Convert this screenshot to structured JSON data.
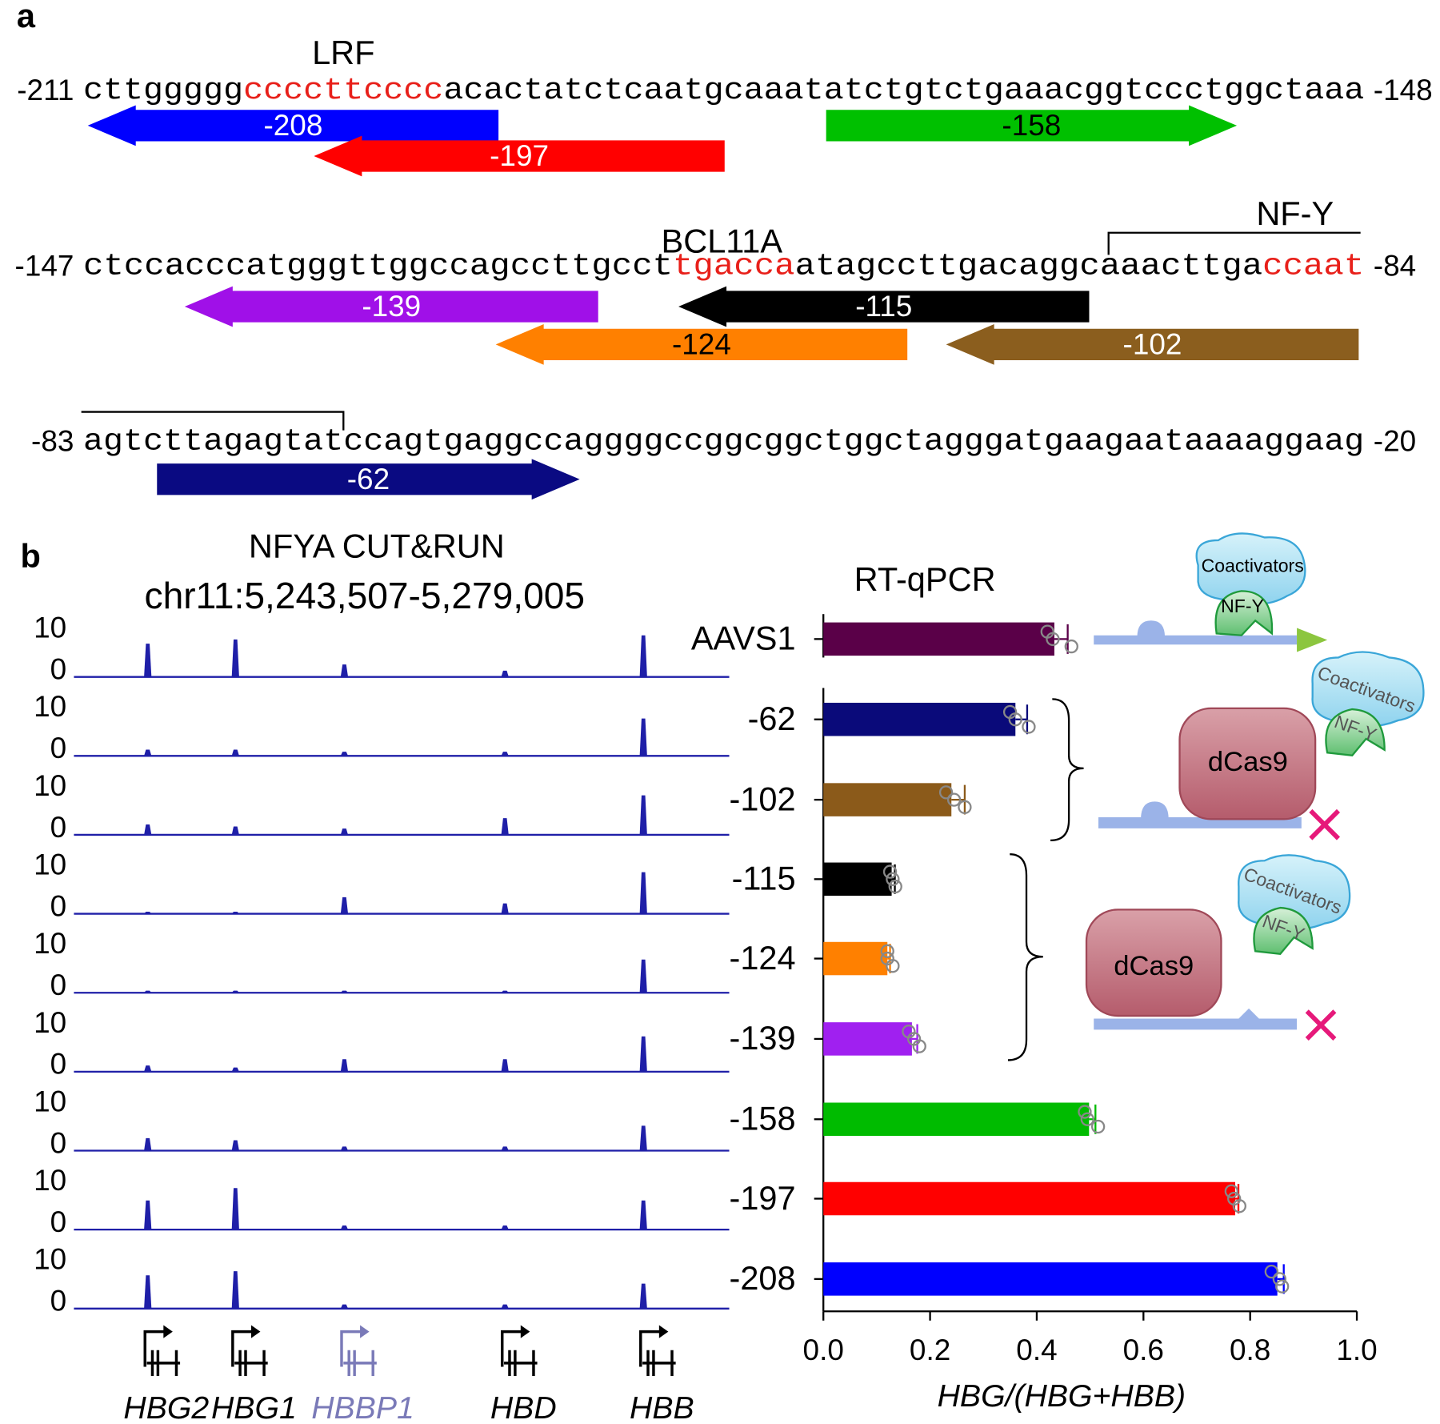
{
  "panel_labels": [
    "a",
    "b"
  ],
  "sequence": {
    "rows": [
      {
        "start": "-211",
        "end": "-148",
        "segments": [
          {
            "text": "cttggggg",
            "color": "#000000"
          },
          {
            "text": "ccccttcccc",
            "color": "#e8201a"
          },
          {
            "text": "acactatctcaatgcaaatatctgtctgaaacggtccctggctaaa",
            "color": "#000000"
          }
        ]
      },
      {
        "start": "-147",
        "end": "-84",
        "segments": [
          {
            "text": "ctccacccatgggttggccagccttgcct",
            "color": "#000000"
          },
          {
            "text": "tgacca",
            "color": "#e8201a"
          },
          {
            "text": "atagccttgacaggcaaacttga",
            "color": "#000000"
          },
          {
            "text": "ccaat",
            "color": "#e8201a"
          }
        ]
      },
      {
        "start": "-83",
        "end": "-20",
        "segments": [
          {
            "text": "agtcttagagtatccagtgaggccaggggccggcggctggctagggatgaagaataaaaggaag",
            "color": "#000000"
          }
        ]
      }
    ],
    "annotations": [
      "LRF",
      "BCL11A",
      "NF-Y"
    ],
    "arrows": [
      {
        "label": "-208",
        "color": "#0000ff",
        "text_color": "#ffffff",
        "direction": "left"
      },
      {
        "label": "-197",
        "color": "#ff0000",
        "text_color": "#ffffff",
        "direction": "left"
      },
      {
        "label": "-158",
        "color": "#00c000",
        "text_color": "#000000",
        "direction": "right"
      },
      {
        "label": "-139",
        "color": "#a010e8",
        "text_color": "#ffffff",
        "direction": "left"
      },
      {
        "label": "-115",
        "color": "#000000",
        "text_color": "#ffffff",
        "direction": "left"
      },
      {
        "label": "-124",
        "color": "#ff8000",
        "text_color": "#000000",
        "direction": "left"
      },
      {
        "label": "-102",
        "color": "#8b5e1e",
        "text_color": "#ffffff",
        "direction": "left"
      },
      {
        "label": "-62",
        "color": "#0a0a82",
        "text_color": "#ffffff",
        "direction": "right"
      }
    ]
  },
  "chart_data": [
    {
      "type": "coverage",
      "title": "NFYA CUT&RUN",
      "subtitle": "chr11:5,243,507-5,279,005",
      "ylim": [
        0,
        10
      ],
      "yticks": [
        0,
        10
      ],
      "color": "#1f1fa8",
      "genes": [
        "HBG2",
        "HBG1",
        "HBBP1",
        "HBD",
        "HBB"
      ],
      "gene_colors": [
        "#000000",
        "#000000",
        "#7a7ab8",
        "#000000",
        "#000000"
      ],
      "series": [
        {
          "values": [
            8,
            9,
            3,
            1.5,
            10
          ]
        },
        {
          "values": [
            1.5,
            1.5,
            1,
            1,
            9
          ]
        },
        {
          "values": [
            2.5,
            2,
            1.5,
            4,
            9.5
          ]
        },
        {
          "values": [
            0.5,
            0.5,
            4,
            2.5,
            10
          ]
        },
        {
          "values": [
            0.5,
            0.5,
            0.5,
            0.5,
            8
          ]
        },
        {
          "values": [
            1.5,
            1,
            3,
            3,
            8.5
          ]
        },
        {
          "values": [
            3,
            2.5,
            1,
            1,
            6
          ]
        },
        {
          "values": [
            7,
            10,
            1,
            1,
            7
          ]
        },
        {
          "values": [
            8,
            9,
            1,
            1,
            6
          ]
        }
      ]
    },
    {
      "type": "bar",
      "orientation": "horizontal",
      "title": "RT-qPCR",
      "xlabel": "HBG/(HBG+HBB)",
      "categories": [
        "AAVS1",
        "-62",
        "-102",
        "-115",
        "-124",
        "-139",
        "-158",
        "-197",
        "-208"
      ],
      "values": [
        0.433,
        0.36,
        0.24,
        0.128,
        0.12,
        0.166,
        0.498,
        0.772,
        0.851
      ],
      "errors": [
        0.025,
        0.022,
        0.025,
        0.006,
        0.005,
        0.01,
        0.012,
        0.006,
        0.012
      ],
      "points": [
        [
          0.42,
          0.43,
          0.465
        ],
        [
          0.35,
          0.36,
          0.385
        ],
        [
          0.23,
          0.245,
          0.265
        ],
        [
          0.125,
          0.13,
          0.135
        ],
        [
          0.12,
          0.12,
          0.13
        ],
        [
          0.16,
          0.17,
          0.18
        ],
        [
          0.49,
          0.495,
          0.515
        ],
        [
          0.765,
          0.77,
          0.78
        ],
        [
          0.84,
          0.855,
          0.86
        ]
      ],
      "colors": [
        "#5a0048",
        "#0a0a7a",
        "#8b5a1a",
        "#000000",
        "#ff8000",
        "#a020f0",
        "#00bb00",
        "#ff0000",
        "#0000ff"
      ],
      "xlim": [
        0,
        1
      ],
      "xticks": [
        {
          "value": 0,
          "label": "0.0"
        },
        0.2,
        0.4,
        0.6,
        0.8,
        {
          "value": 1,
          "label": "1.0"
        }
      ]
    }
  ],
  "schematic": {
    "coactivators": "Coactivators",
    "nfy": "NF-Y",
    "dcas9": "dCas9"
  }
}
